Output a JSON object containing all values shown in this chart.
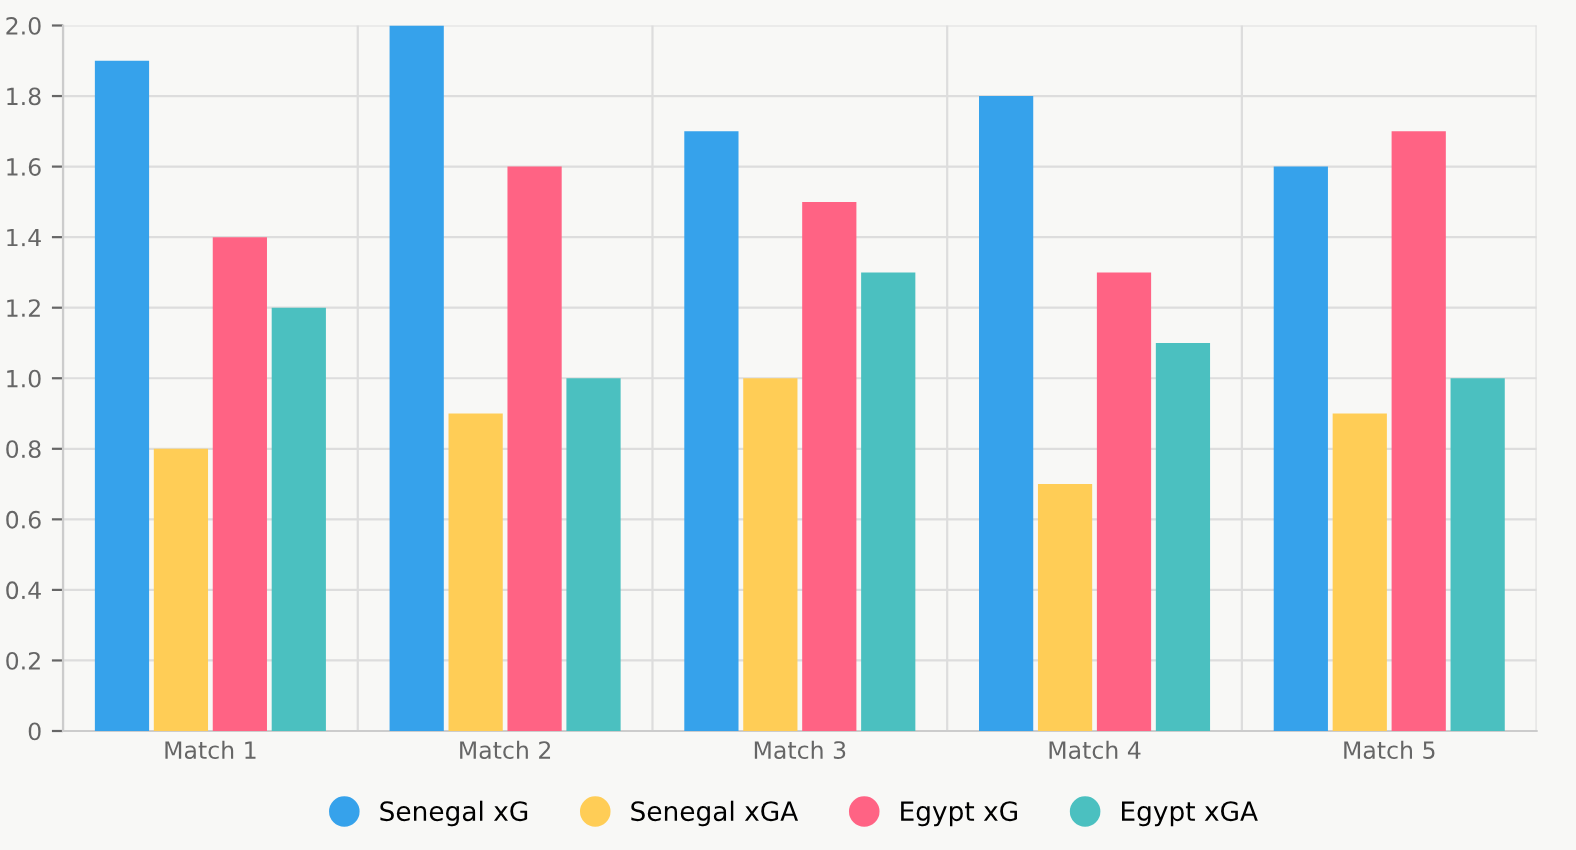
{
  "chart_data": {
    "type": "bar",
    "categories": [
      "Match 1",
      "Match 2",
      "Match 3",
      "Match 4",
      "Match 5"
    ],
    "series": [
      {
        "name": "Senegal xG",
        "color": "#36a2eb",
        "values": [
          1.9,
          2.0,
          1.7,
          1.8,
          1.6
        ]
      },
      {
        "name": "Senegal xGA",
        "color": "#ffcd56",
        "values": [
          0.8,
          0.9,
          1.0,
          0.7,
          0.9
        ]
      },
      {
        "name": "Egypt xG",
        "color": "#ff6384",
        "values": [
          1.4,
          1.6,
          1.5,
          1.3,
          1.7
        ]
      },
      {
        "name": "Egypt xGA",
        "color": "#4bc0c0",
        "values": [
          1.2,
          1.0,
          1.3,
          1.1,
          1.0
        ]
      }
    ],
    "ylim": [
      0,
      2.0
    ],
    "yticks": [
      0,
      0.2,
      0.4,
      0.6,
      0.8,
      {
        "value": 1.0,
        "label": "1.0"
      },
      1.2,
      1.4,
      1.6,
      1.8,
      {
        "value": 2.0,
        "label": "2.0"
      }
    ],
    "grid": true,
    "legend": "bottom",
    "marker": "circle"
  }
}
